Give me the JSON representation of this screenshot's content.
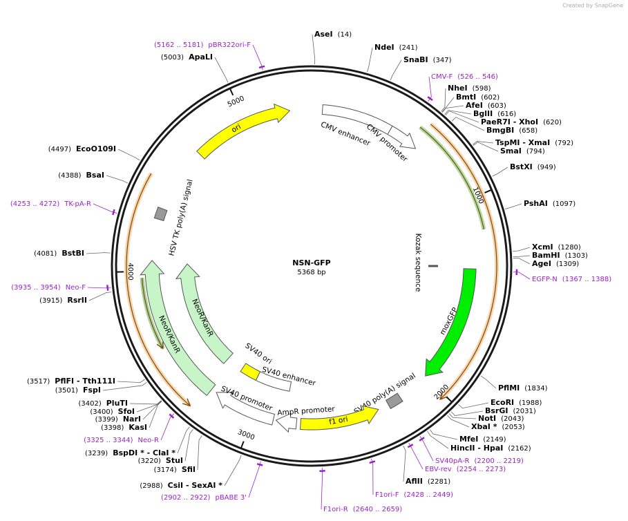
{
  "header": {
    "credit": "Created by SnapGene"
  },
  "plasmid": {
    "name": "NSN-GFP",
    "size": "5368 bp"
  },
  "scale_ticks": [
    1000,
    2000,
    3000,
    4000,
    5000
  ],
  "features": [
    {
      "label": "ori"
    },
    {
      "label": "CMV enhancer"
    },
    {
      "label": "CMV promoter"
    },
    {
      "label": "Kozak sequence"
    },
    {
      "label": "moxGFP"
    },
    {
      "label": "SV40 poly(A) signal"
    },
    {
      "label": "f1 ori"
    },
    {
      "label": "AmpR promoter"
    },
    {
      "label": "SV40 promoter"
    },
    {
      "label": "SV40 enhancer"
    },
    {
      "label": "SV40 ori"
    },
    {
      "label": "NeoR/KanR"
    },
    {
      "label": "NeoR/KanR"
    },
    {
      "label": "HSV TK poly(A) signal"
    }
  ],
  "sites": [
    {
      "name": "AseI",
      "position": "(14)"
    },
    {
      "name": "NdeI",
      "position": "(241)"
    },
    {
      "name": "SnaBI",
      "position": "(347)"
    },
    {
      "name": "NheI",
      "position": "(598)"
    },
    {
      "name": "BmtI",
      "position": "(602)"
    },
    {
      "name": "AfeI",
      "position": "(603)"
    },
    {
      "name": "BglII",
      "position": "(616)"
    },
    {
      "name": "PaeR7I  - XhoI",
      "position": "(620)"
    },
    {
      "name": "BmgBI",
      "position": "(658)"
    },
    {
      "name": "TspMI  - XmaI",
      "position": "(792)"
    },
    {
      "name": "SmaI",
      "position": "(794)"
    },
    {
      "name": "BstXI",
      "position": "(949)"
    },
    {
      "name": "PshAI",
      "position": "(1097)"
    },
    {
      "name": "XcmI",
      "position": "(1280)"
    },
    {
      "name": "BamHI",
      "position": "(1303)"
    },
    {
      "name": "AgeI",
      "position": "(1309)"
    },
    {
      "name": "PflMI",
      "position": "(1834)"
    },
    {
      "name": "EcoRI",
      "position": "(1988)"
    },
    {
      "name": "BsrGI",
      "position": "(2031)"
    },
    {
      "name": "NotI",
      "position": "(2043)"
    },
    {
      "name": "XbaI *",
      "position": "(2053)"
    },
    {
      "name": "MfeI",
      "position": "(2149)"
    },
    {
      "name": "HincII  - HpaI",
      "position": "(2162)"
    },
    {
      "name": "AflII",
      "position": "(2281)"
    },
    {
      "name": "CsiI  - SexAI *",
      "position": "(2988)"
    },
    {
      "name": "SfiI",
      "position": "(3174)"
    },
    {
      "name": "StuI",
      "position": "(3220)"
    },
    {
      "name": "BspDI *  - ClaI *",
      "position": "(3239)"
    },
    {
      "name": "KasI",
      "position": "(3398)"
    },
    {
      "name": "NarI",
      "position": "(3399)"
    },
    {
      "name": "SfoI",
      "position": "(3400)"
    },
    {
      "name": "PluTI",
      "position": "(3402)"
    },
    {
      "name": "FspI",
      "position": "(3501)"
    },
    {
      "name": "PflFI  - Tth111I",
      "position": "(3517)"
    },
    {
      "name": "RsrII",
      "position": "(3915)"
    },
    {
      "name": "BstBI",
      "position": "(4081)"
    },
    {
      "name": "BsaI",
      "position": "(4388)"
    },
    {
      "name": "EcoO109I",
      "position": "(4497)"
    },
    {
      "name": "ApaLI",
      "position": "(5003)"
    }
  ],
  "primers": [
    {
      "name": "pBR322ori-F",
      "range": "(5162 .. 5181)"
    },
    {
      "name": "CMV-F",
      "range": "(526 .. 546)"
    },
    {
      "name": "EGFP-N",
      "range": "(1367 .. 1388)"
    },
    {
      "name": "SV40pA-R",
      "range": "(2200 .. 2219)"
    },
    {
      "name": "EBV-rev",
      "range": "(2254 .. 2273)"
    },
    {
      "name": "F1ori-F",
      "range": "(2428 .. 2449)"
    },
    {
      "name": "F1ori-R",
      "range": "(2640 .. 2659)"
    },
    {
      "name": "pBABE 3'",
      "range": "(2902 .. 2922)"
    },
    {
      "name": "Neo-R",
      "range": "(3325 .. 3344)"
    },
    {
      "name": "Neo-F",
      "range": "(3935 .. 3954)"
    },
    {
      "name": "TK-pA-R",
      "range": "(4253 .. 4272)"
    }
  ]
}
